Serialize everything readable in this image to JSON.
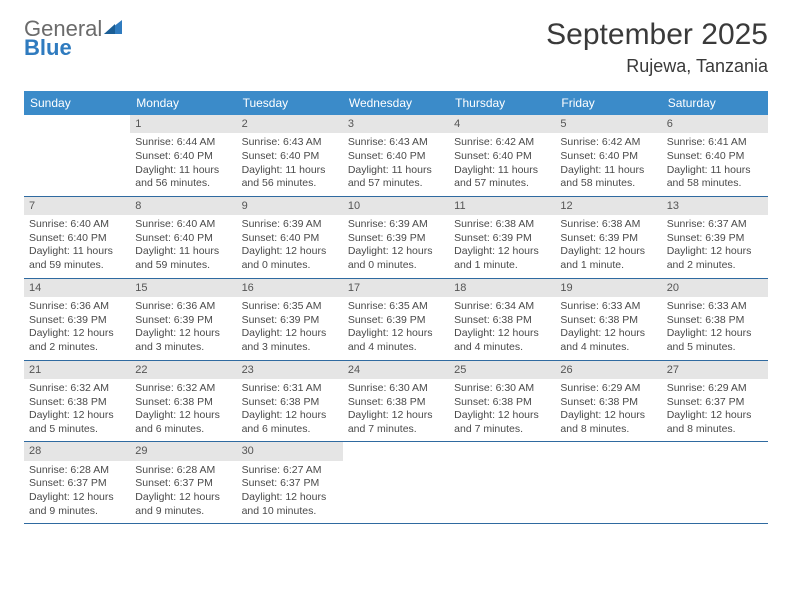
{
  "logo": {
    "word1": "General",
    "word2": "Blue"
  },
  "title": "September 2025",
  "location": "Rujewa, Tanzania",
  "colors": {
    "header_bg": "#3b8bc9",
    "header_text": "#ffffff",
    "daynum_bg": "#e5e5e5",
    "week_divider": "#2f6aa0",
    "body_text": "#4a4a4a",
    "logo_gray": "#6b6b6b",
    "logo_blue": "#2f7bbf"
  },
  "dayNames": [
    "Sunday",
    "Monday",
    "Tuesday",
    "Wednesday",
    "Thursday",
    "Friday",
    "Saturday"
  ],
  "weeks": [
    [
      null,
      {
        "n": "1",
        "sr": "Sunrise: 6:44 AM",
        "ss": "Sunset: 6:40 PM",
        "d1": "Daylight: 11 hours",
        "d2": "and 56 minutes."
      },
      {
        "n": "2",
        "sr": "Sunrise: 6:43 AM",
        "ss": "Sunset: 6:40 PM",
        "d1": "Daylight: 11 hours",
        "d2": "and 56 minutes."
      },
      {
        "n": "3",
        "sr": "Sunrise: 6:43 AM",
        "ss": "Sunset: 6:40 PM",
        "d1": "Daylight: 11 hours",
        "d2": "and 57 minutes."
      },
      {
        "n": "4",
        "sr": "Sunrise: 6:42 AM",
        "ss": "Sunset: 6:40 PM",
        "d1": "Daylight: 11 hours",
        "d2": "and 57 minutes."
      },
      {
        "n": "5",
        "sr": "Sunrise: 6:42 AM",
        "ss": "Sunset: 6:40 PM",
        "d1": "Daylight: 11 hours",
        "d2": "and 58 minutes."
      },
      {
        "n": "6",
        "sr": "Sunrise: 6:41 AM",
        "ss": "Sunset: 6:40 PM",
        "d1": "Daylight: 11 hours",
        "d2": "and 58 minutes."
      }
    ],
    [
      {
        "n": "7",
        "sr": "Sunrise: 6:40 AM",
        "ss": "Sunset: 6:40 PM",
        "d1": "Daylight: 11 hours",
        "d2": "and 59 minutes."
      },
      {
        "n": "8",
        "sr": "Sunrise: 6:40 AM",
        "ss": "Sunset: 6:40 PM",
        "d1": "Daylight: 11 hours",
        "d2": "and 59 minutes."
      },
      {
        "n": "9",
        "sr": "Sunrise: 6:39 AM",
        "ss": "Sunset: 6:40 PM",
        "d1": "Daylight: 12 hours",
        "d2": "and 0 minutes."
      },
      {
        "n": "10",
        "sr": "Sunrise: 6:39 AM",
        "ss": "Sunset: 6:39 PM",
        "d1": "Daylight: 12 hours",
        "d2": "and 0 minutes."
      },
      {
        "n": "11",
        "sr": "Sunrise: 6:38 AM",
        "ss": "Sunset: 6:39 PM",
        "d1": "Daylight: 12 hours",
        "d2": "and 1 minute."
      },
      {
        "n": "12",
        "sr": "Sunrise: 6:38 AM",
        "ss": "Sunset: 6:39 PM",
        "d1": "Daylight: 12 hours",
        "d2": "and 1 minute."
      },
      {
        "n": "13",
        "sr": "Sunrise: 6:37 AM",
        "ss": "Sunset: 6:39 PM",
        "d1": "Daylight: 12 hours",
        "d2": "and 2 minutes."
      }
    ],
    [
      {
        "n": "14",
        "sr": "Sunrise: 6:36 AM",
        "ss": "Sunset: 6:39 PM",
        "d1": "Daylight: 12 hours",
        "d2": "and 2 minutes."
      },
      {
        "n": "15",
        "sr": "Sunrise: 6:36 AM",
        "ss": "Sunset: 6:39 PM",
        "d1": "Daylight: 12 hours",
        "d2": "and 3 minutes."
      },
      {
        "n": "16",
        "sr": "Sunrise: 6:35 AM",
        "ss": "Sunset: 6:39 PM",
        "d1": "Daylight: 12 hours",
        "d2": "and 3 minutes."
      },
      {
        "n": "17",
        "sr": "Sunrise: 6:35 AM",
        "ss": "Sunset: 6:39 PM",
        "d1": "Daylight: 12 hours",
        "d2": "and 4 minutes."
      },
      {
        "n": "18",
        "sr": "Sunrise: 6:34 AM",
        "ss": "Sunset: 6:38 PM",
        "d1": "Daylight: 12 hours",
        "d2": "and 4 minutes."
      },
      {
        "n": "19",
        "sr": "Sunrise: 6:33 AM",
        "ss": "Sunset: 6:38 PM",
        "d1": "Daylight: 12 hours",
        "d2": "and 4 minutes."
      },
      {
        "n": "20",
        "sr": "Sunrise: 6:33 AM",
        "ss": "Sunset: 6:38 PM",
        "d1": "Daylight: 12 hours",
        "d2": "and 5 minutes."
      }
    ],
    [
      {
        "n": "21",
        "sr": "Sunrise: 6:32 AM",
        "ss": "Sunset: 6:38 PM",
        "d1": "Daylight: 12 hours",
        "d2": "and 5 minutes."
      },
      {
        "n": "22",
        "sr": "Sunrise: 6:32 AM",
        "ss": "Sunset: 6:38 PM",
        "d1": "Daylight: 12 hours",
        "d2": "and 6 minutes."
      },
      {
        "n": "23",
        "sr": "Sunrise: 6:31 AM",
        "ss": "Sunset: 6:38 PM",
        "d1": "Daylight: 12 hours",
        "d2": "and 6 minutes."
      },
      {
        "n": "24",
        "sr": "Sunrise: 6:30 AM",
        "ss": "Sunset: 6:38 PM",
        "d1": "Daylight: 12 hours",
        "d2": "and 7 minutes."
      },
      {
        "n": "25",
        "sr": "Sunrise: 6:30 AM",
        "ss": "Sunset: 6:38 PM",
        "d1": "Daylight: 12 hours",
        "d2": "and 7 minutes."
      },
      {
        "n": "26",
        "sr": "Sunrise: 6:29 AM",
        "ss": "Sunset: 6:38 PM",
        "d1": "Daylight: 12 hours",
        "d2": "and 8 minutes."
      },
      {
        "n": "27",
        "sr": "Sunrise: 6:29 AM",
        "ss": "Sunset: 6:37 PM",
        "d1": "Daylight: 12 hours",
        "d2": "and 8 minutes."
      }
    ],
    [
      {
        "n": "28",
        "sr": "Sunrise: 6:28 AM",
        "ss": "Sunset: 6:37 PM",
        "d1": "Daylight: 12 hours",
        "d2": "and 9 minutes."
      },
      {
        "n": "29",
        "sr": "Sunrise: 6:28 AM",
        "ss": "Sunset: 6:37 PM",
        "d1": "Daylight: 12 hours",
        "d2": "and 9 minutes."
      },
      {
        "n": "30",
        "sr": "Sunrise: 6:27 AM",
        "ss": "Sunset: 6:37 PM",
        "d1": "Daylight: 12 hours",
        "d2": "and 10 minutes."
      },
      null,
      null,
      null,
      null
    ]
  ]
}
